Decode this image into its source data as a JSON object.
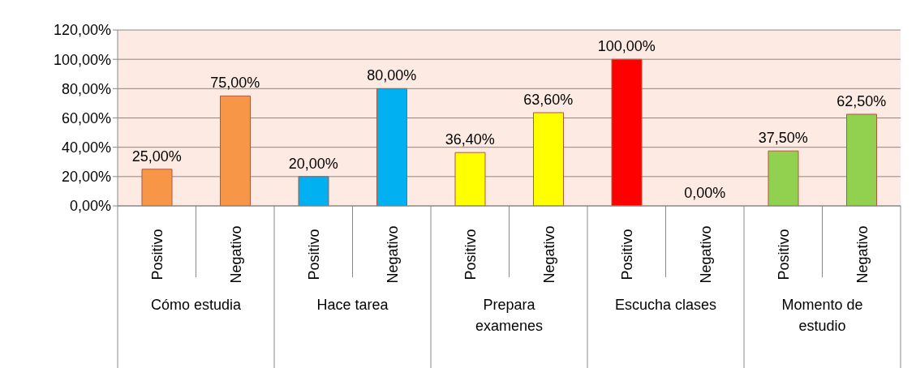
{
  "chart_data": {
    "type": "bar",
    "categories": [
      "Positivo",
      "Negativo",
      "Positivo",
      "Negativo",
      "Positivo",
      "Negativo",
      "Positivo",
      "Negativo",
      "Positivo",
      "Negativo"
    ],
    "values": [
      25,
      75,
      20,
      80,
      36.4,
      63.6,
      100,
      0,
      37.5,
      62.5
    ],
    "colors": [
      "#f79646",
      "#f79646",
      "#00b0f0",
      "#00b0f0",
      "#ffff00",
      "#ffff00",
      "#ff0000",
      "#ff0000",
      "#92d050",
      "#92d050"
    ],
    "value_labels": [
      "25,00%",
      "75,00%",
      "20,00%",
      "80,00%",
      "36,40%",
      "63,60%",
      "100,00%",
      "0,00%",
      "37,50%",
      "62,50%"
    ],
    "annotations": [
      "Cómo estudia",
      "Hace tarea",
      "Prepara examenes",
      "Escucha clases",
      "Momento de estudio"
    ],
    "ylim": [
      0,
      120
    ],
    "yticks": [
      {
        "value": 0,
        "label": "0,00%"
      },
      {
        "value": 20,
        "label": "20,00%"
      },
      {
        "value": 40,
        "label": "40,00%"
      },
      {
        "value": 60,
        "label": "60,00%"
      },
      {
        "value": 80,
        "label": "80,00%"
      },
      {
        "value": 100,
        "label": "100,00%"
      },
      {
        "value": 120,
        "label": "120,00%"
      }
    ],
    "grid": "y",
    "legend": false
  }
}
